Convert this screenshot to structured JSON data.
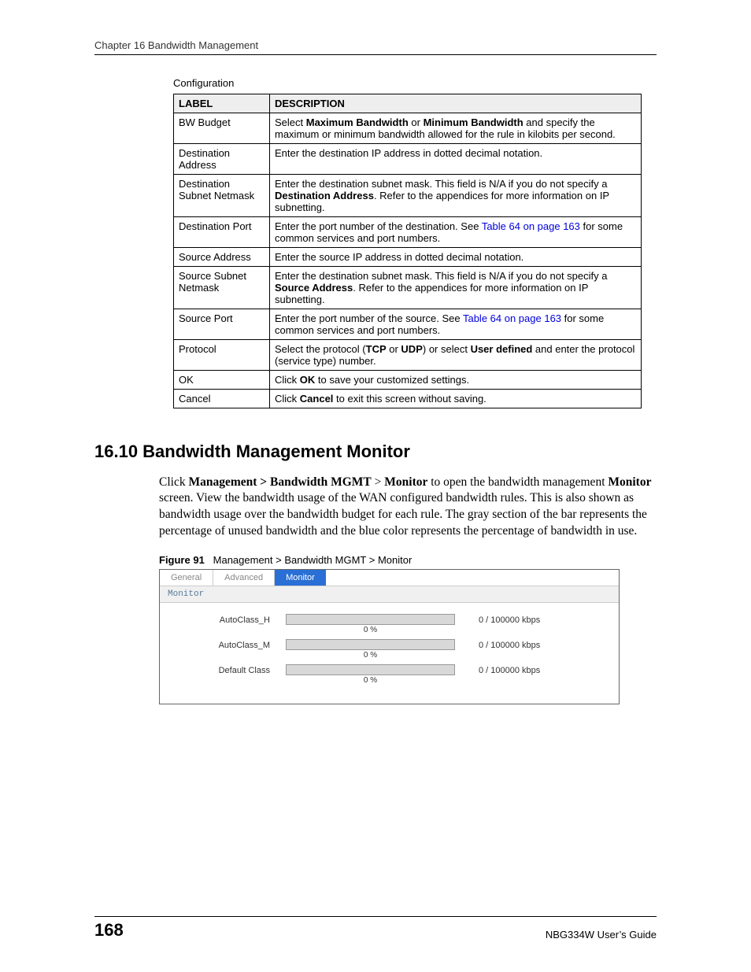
{
  "header": {
    "chapter_line": "Chapter 16 Bandwidth Management"
  },
  "config_label": "Configuration",
  "table": {
    "headers": {
      "label": "LABEL",
      "description": "DESCRIPTION"
    },
    "rows": [
      {
        "label": "BW Budget",
        "desc_parts": [
          {
            "t": "Select "
          },
          {
            "t": "Maximum Bandwidth",
            "b": true
          },
          {
            "t": " or "
          },
          {
            "t": "Minimum Bandwidth",
            "b": true
          },
          {
            "t": " and specify the maximum or minimum bandwidth allowed for the rule in kilobits per second."
          }
        ]
      },
      {
        "label": "Destination Address",
        "desc_parts": [
          {
            "t": "Enter the destination IP address in dotted decimal notation."
          }
        ]
      },
      {
        "label": "Destination Subnet Netmask",
        "desc_parts": [
          {
            "t": "Enter the destination subnet mask. This field is N/A if you do not specify a "
          },
          {
            "t": "Destination Address",
            "b": true
          },
          {
            "t": ". Refer to the appendices for more information on IP subnetting."
          }
        ]
      },
      {
        "label": "Destination Port",
        "desc_parts": [
          {
            "t": "Enter the port number of the destination. See "
          },
          {
            "t": "Table 64 on page 163",
            "link": true
          },
          {
            "t": " for some common services and port numbers."
          }
        ]
      },
      {
        "label": "Source Address",
        "desc_parts": [
          {
            "t": "Enter the source IP address in dotted decimal notation."
          }
        ]
      },
      {
        "label": "Source Subnet Netmask",
        "desc_parts": [
          {
            "t": "Enter the destination subnet mask. This field is N/A if you do not specify a "
          },
          {
            "t": "Source Address",
            "b": true
          },
          {
            "t": ". Refer to the appendices for more information on IP subnetting."
          }
        ]
      },
      {
        "label": "Source Port",
        "desc_parts": [
          {
            "t": "Enter the port number of the source. See "
          },
          {
            "t": "Table 64 on page 163",
            "link": true
          },
          {
            "t": " for some common services and port numbers."
          }
        ]
      },
      {
        "label": "Protocol",
        "desc_parts": [
          {
            "t": "Select the protocol ("
          },
          {
            "t": "TCP",
            "b": true
          },
          {
            "t": " or "
          },
          {
            "t": "UDP",
            "b": true
          },
          {
            "t": ") or select "
          },
          {
            "t": "User defined",
            "b": true
          },
          {
            "t": " and enter the protocol (service type) number."
          }
        ]
      },
      {
        "label": "OK",
        "desc_parts": [
          {
            "t": "Click "
          },
          {
            "t": "OK",
            "b": true
          },
          {
            "t": " to save your customized settings."
          }
        ]
      },
      {
        "label": "Cancel",
        "desc_parts": [
          {
            "t": "Click "
          },
          {
            "t": "Cancel",
            "b": true
          },
          {
            "t": " to exit this screen without saving."
          }
        ]
      }
    ]
  },
  "section": {
    "title": "16.10  Bandwidth Management Monitor",
    "para_parts": [
      {
        "t": "Click "
      },
      {
        "t": "Management > Bandwidth MGMT",
        "b": true
      },
      {
        "t": " > "
      },
      {
        "t": "Monitor",
        "b": true
      },
      {
        "t": " to open the bandwidth management "
      },
      {
        "t": "Monitor",
        "b": true
      },
      {
        "t": " screen. View the bandwidth usage of the WAN configured bandwidth rules. This is also shown as bandwidth usage over the bandwidth budget for each rule. The gray section of the bar represents the percentage of unused bandwidth and the blue color represents the percentage of bandwidth in use."
      }
    ]
  },
  "figure": {
    "caption_prefix": "Figure 91",
    "caption_text": "Management > Bandwidth MGMT > Monitor",
    "tabs": {
      "general": "General",
      "advanced": "Advanced",
      "monitor": "Monitor"
    },
    "subhead": "Monitor",
    "bar_bg": "#d8d8d8",
    "active_tab_bg": "#2a6fd6",
    "rows": [
      {
        "label": "AutoClass_H",
        "pct": "0 %",
        "value": "0 / 100000  kbps"
      },
      {
        "label": "AutoClass_M",
        "pct": "0 %",
        "value": "0 / 100000  kbps"
      },
      {
        "label": "Default Class",
        "pct": "0 %",
        "value": "0 / 100000  kbps"
      }
    ]
  },
  "footer": {
    "page": "168",
    "guide": "NBG334W User’s Guide"
  }
}
